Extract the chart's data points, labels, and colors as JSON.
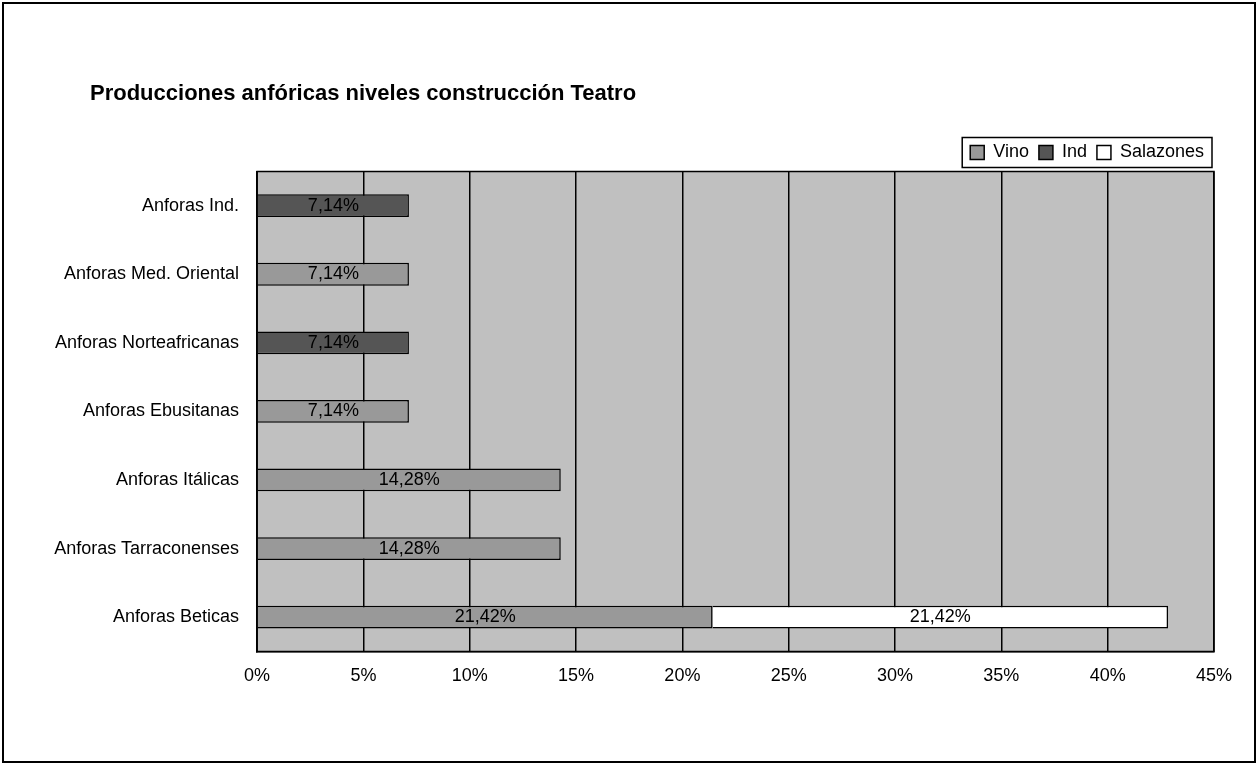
{
  "chart_data": {
    "type": "bar",
    "orientation": "horizontal",
    "stacked": true,
    "title": "Producciones anfóricas niveles construcción Teatro",
    "categories": [
      "Anforas Ind.",
      "Anforas Med. Oriental",
      "Anforas Norteafricanas",
      "Anforas Ebusitanas",
      "Anforas Itálicas",
      "Anforas Tarraconenses",
      "Anforas Beticas"
    ],
    "series": [
      {
        "name": "Vino",
        "color": "#999999",
        "values": [
          null,
          7.14,
          null,
          7.14,
          14.28,
          14.28,
          21.42
        ],
        "value_labels": [
          null,
          "7,14%",
          null,
          "7,14%",
          "14,28%",
          "14,28%",
          "21,42%"
        ]
      },
      {
        "name": "Ind",
        "color": "#555555",
        "values": [
          7.14,
          null,
          7.14,
          null,
          null,
          null,
          null
        ],
        "value_labels": [
          "7,14%",
          null,
          "7,14%",
          null,
          null,
          null,
          null
        ]
      },
      {
        "name": "Salazones",
        "color": "#ffffff",
        "values": [
          null,
          null,
          null,
          null,
          null,
          null,
          21.42
        ],
        "value_labels": [
          null,
          null,
          null,
          null,
          null,
          null,
          "21,42%"
        ]
      }
    ],
    "xlim": [
      0,
      45
    ],
    "xticks": [
      {
        "value": 0,
        "label": "0%"
      },
      {
        "value": 5,
        "label": "5%"
      },
      {
        "value": 10,
        "label": "10%"
      },
      {
        "value": 15,
        "label": "15%"
      },
      {
        "value": 20,
        "label": "20%"
      },
      {
        "value": 25,
        "label": "25%"
      },
      {
        "value": 30,
        "label": "30%"
      },
      {
        "value": 35,
        "label": "35%"
      },
      {
        "value": 40,
        "label": "40%"
      },
      {
        "value": 45,
        "label": "45%"
      }
    ],
    "grid": "x",
    "legend": "top right"
  }
}
